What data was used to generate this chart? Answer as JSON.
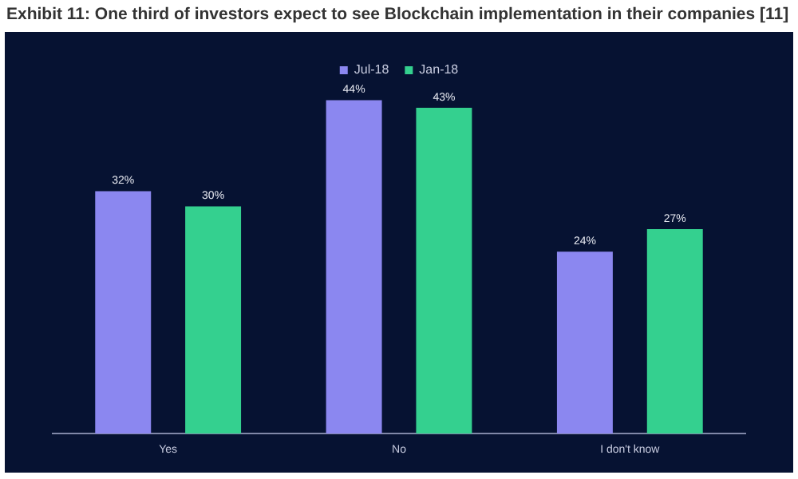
{
  "chart_data": {
    "type": "bar",
    "title": "Exhibit 11: One third of investors expect to see Blockchain implementation in their companies [11]",
    "categories": [
      "Yes",
      "No",
      "I don't know"
    ],
    "series": [
      {
        "name": "Jul-18",
        "color": "#8b87f0",
        "values": [
          32,
          44,
          24
        ],
        "value_labels": [
          "32%",
          "44%",
          "24%"
        ]
      },
      {
        "name": "Jan-18",
        "color": "#34d08f",
        "values": [
          30,
          43,
          27
        ],
        "value_labels": [
          "30%",
          "43%",
          "27%"
        ]
      }
    ],
    "legend": "top",
    "grid": false
  }
}
